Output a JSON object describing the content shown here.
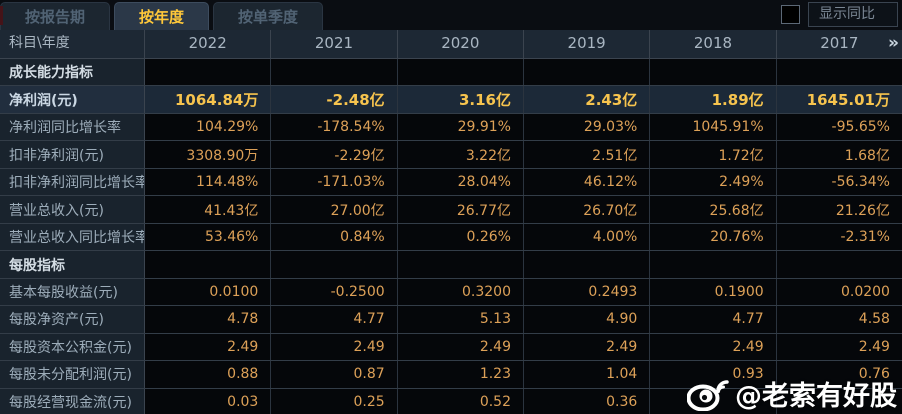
{
  "tabs": [
    {
      "label": "按报告期",
      "active": false
    },
    {
      "label": "按年度",
      "active": true
    },
    {
      "label": "按单季度",
      "active": false
    }
  ],
  "controls": {
    "show_yoy_label": "显示同比",
    "show_yoy_checked": false
  },
  "table": {
    "corner_label": "科目\\年度",
    "years": [
      "2022",
      "2021",
      "2020",
      "2019",
      "2018",
      "2017"
    ],
    "more_icon": "»",
    "rows": [
      {
        "type": "section",
        "label": "成长能力指标",
        "values": [
          "",
          "",
          "",
          "",
          "",
          ""
        ]
      },
      {
        "type": "highlight",
        "label": "净利润(元)",
        "values": [
          "1064.84万",
          "-2.48亿",
          "3.16亿",
          "2.43亿",
          "1.89亿",
          "1645.01万"
        ]
      },
      {
        "type": "data",
        "label": "净利润同比增长率",
        "values": [
          "104.29%",
          "-178.54%",
          "29.91%",
          "29.03%",
          "1045.91%",
          "-95.65%"
        ]
      },
      {
        "type": "data",
        "label": "扣非净利润(元)",
        "values": [
          "3308.90万",
          "-2.29亿",
          "3.22亿",
          "2.51亿",
          "1.72亿",
          "1.68亿"
        ]
      },
      {
        "type": "data",
        "label": "扣非净利润同比增长率",
        "values": [
          "114.48%",
          "-171.03%",
          "28.04%",
          "46.12%",
          "2.49%",
          "-56.34%"
        ]
      },
      {
        "type": "data",
        "label": "营业总收入(元)",
        "values": [
          "41.43亿",
          "27.00亿",
          "26.77亿",
          "26.70亿",
          "25.68亿",
          "21.26亿"
        ]
      },
      {
        "type": "data",
        "label": "营业总收入同比增长率",
        "values": [
          "53.46%",
          "0.84%",
          "0.26%",
          "4.00%",
          "20.76%",
          "-2.31%"
        ]
      },
      {
        "type": "section",
        "label": "每股指标",
        "values": [
          "",
          "",
          "",
          "",
          "",
          ""
        ]
      },
      {
        "type": "data",
        "label": "基本每股收益(元)",
        "values": [
          "0.0100",
          "-0.2500",
          "0.3200",
          "0.2493",
          "0.1900",
          "0.0200"
        ]
      },
      {
        "type": "data",
        "label": "每股净资产(元)",
        "values": [
          "4.78",
          "4.77",
          "5.13",
          "4.90",
          "4.77",
          "4.58"
        ]
      },
      {
        "type": "data",
        "label": "每股资本公积金(元)",
        "values": [
          "2.49",
          "2.49",
          "2.49",
          "2.49",
          "2.49",
          "2.49"
        ]
      },
      {
        "type": "data",
        "label": "每股未分配利润(元)",
        "values": [
          "0.88",
          "0.87",
          "1.23",
          "1.04",
          "0.93",
          "0.76"
        ]
      },
      {
        "type": "data",
        "label": "每股经营现金流(元)",
        "values": [
          "0.03",
          "0.25",
          "0.52",
          "0.36",
          "",
          ""
        ]
      }
    ]
  },
  "watermark": {
    "handle": "@老索有好股"
  },
  "colors": {
    "background": "#070a0e",
    "panel_blue": "#19232d",
    "header_blue": "#1d2834",
    "highlight_row": "#1c2938",
    "value_gold": "#dda158",
    "highlight_gold": "#f7c44e",
    "tab_active_text": "#ffc83a",
    "label_gray": "#9dadba",
    "watermark_white": "#ffffff"
  }
}
